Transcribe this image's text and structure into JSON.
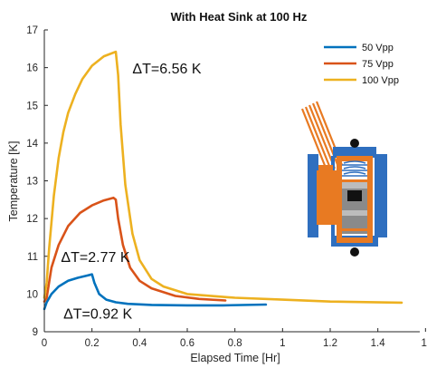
{
  "chart_data": {
    "type": "line",
    "title": "With Heat Sink at 100 Hz",
    "xlabel": "Elapsed Time [Hr]",
    "ylabel": "Temperature [K]",
    "xlim": [
      0,
      1.5
    ],
    "ylim": [
      9,
      17
    ],
    "x_ticks": [
      "0",
      "0.2",
      "0.4",
      "0.6",
      "0.8",
      "1",
      "1.2",
      "1.4",
      "1."
    ],
    "y_ticks": [
      "9",
      "10",
      "11",
      "12",
      "13",
      "14",
      "15",
      "16",
      "17"
    ],
    "grid": false,
    "legend_position": "top-right",
    "series": [
      {
        "name": "50 Vpp",
        "color": "#0072BD",
        "x": [
          0,
          0.01,
          0.03,
          0.06,
          0.1,
          0.14,
          0.18,
          0.2,
          0.21,
          0.23,
          0.26,
          0.3,
          0.35,
          0.45,
          0.6,
          0.75,
          0.93
        ],
        "y": [
          9.6,
          9.78,
          10.0,
          10.2,
          10.35,
          10.43,
          10.49,
          10.52,
          10.3,
          10.0,
          9.85,
          9.78,
          9.74,
          9.71,
          9.7,
          9.7,
          9.72
        ]
      },
      {
        "name": "75 Vpp",
        "color": "#D95319",
        "x": [
          0,
          0.01,
          0.03,
          0.06,
          0.1,
          0.15,
          0.2,
          0.25,
          0.29,
          0.3,
          0.31,
          0.33,
          0.36,
          0.4,
          0.45,
          0.55,
          0.65,
          0.76
        ],
        "y": [
          9.8,
          9.9,
          10.7,
          11.3,
          11.8,
          12.15,
          12.35,
          12.48,
          12.55,
          12.5,
          12.0,
          11.3,
          10.7,
          10.35,
          10.15,
          9.95,
          9.87,
          9.83
        ]
      },
      {
        "name": "100 Vpp",
        "color": "#EDB120",
        "x": [
          0,
          0.01,
          0.02,
          0.04,
          0.06,
          0.08,
          0.1,
          0.13,
          0.16,
          0.2,
          0.25,
          0.3,
          0.31,
          0.32,
          0.34,
          0.37,
          0.4,
          0.45,
          0.5,
          0.6,
          0.8,
          1.0,
          1.2,
          1.5
        ],
        "y": [
          9.9,
          10.3,
          11.2,
          12.6,
          13.6,
          14.3,
          14.8,
          15.3,
          15.7,
          16.05,
          16.3,
          16.42,
          15.8,
          14.5,
          12.9,
          11.6,
          10.9,
          10.4,
          10.2,
          10.0,
          9.9,
          9.85,
          9.8,
          9.77
        ]
      }
    ],
    "annotations": [
      {
        "text": "ΔT=6.56 K",
        "x": 0.37,
        "y": 15.85
      },
      {
        "text": "ΔT=2.77 K",
        "x": 0.07,
        "y": 10.85
      },
      {
        "text": "ΔT=0.92 K",
        "x": 0.08,
        "y": 9.35
      }
    ]
  },
  "inset": {
    "icon": "cryocooler-heat-sink-cross-section-icon",
    "colors": {
      "housing": "#2f6fbf",
      "copper": "#e87a22",
      "copper_light": "#f29040",
      "core_gray": "#8a8a8a",
      "core_light": "#bcbcbc",
      "dark": "#111111"
    }
  }
}
